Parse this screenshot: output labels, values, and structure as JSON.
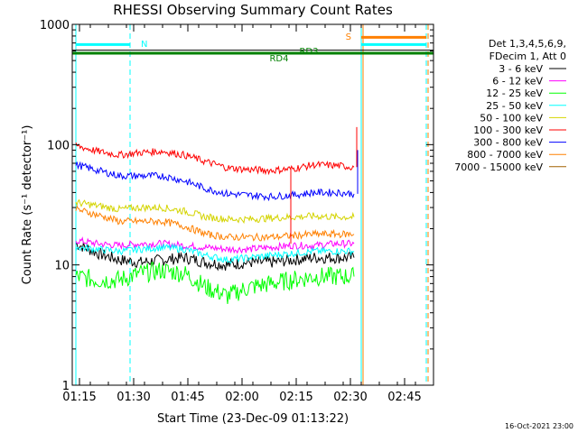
{
  "chart_data": {
    "type": "line",
    "title": "RHESSI Observing Summary Count Rates",
    "xlabel": "Start Time (23-Dec-09 01:13:22)",
    "ylabel": "Count Rate (s⁻¹ detector⁻¹)",
    "y_scale": "log",
    "ylim": [
      1,
      1000
    ],
    "x_range": [
      "01:13",
      "02:53"
    ],
    "x_ticks": [
      "01:15",
      "01:30",
      "01:45",
      "02:00",
      "02:15",
      "02:30",
      "02:45"
    ],
    "y_ticks": [
      "1",
      "10",
      "100",
      "1000"
    ],
    "legend_header": [
      "Det 1,3,4,5,6,9,",
      "FDecim 1, Att 0"
    ],
    "legend_position": "right",
    "series": [
      {
        "name": "3 - 6 keV",
        "color": "#000000",
        "x": [
          "01:14",
          "01:20",
          "01:26",
          "01:32",
          "01:38",
          "01:44",
          "01:50",
          "01:56",
          "02:02",
          "02:08",
          "02:14",
          "02:20",
          "02:26",
          "02:31"
        ],
        "y": [
          15,
          12.5,
          11,
          10.5,
          11,
          11.5,
          10.5,
          10,
          10.5,
          10.5,
          11,
          11.5,
          11.5,
          11.5
        ]
      },
      {
        "name": "6 - 12 keV",
        "color": "#ff00ff",
        "x": [
          "01:14",
          "01:20",
          "01:26",
          "01:32",
          "01:38",
          "01:44",
          "01:50",
          "01:56",
          "02:02",
          "02:08",
          "02:14",
          "02:20",
          "02:26",
          "02:31"
        ],
        "y": [
          16,
          15,
          14.5,
          15,
          15,
          14.5,
          14,
          13.5,
          13.5,
          14,
          14.5,
          14.5,
          15,
          15
        ]
      },
      {
        "name": "12 - 25 keV",
        "color": "#00ff00",
        "x": [
          "01:14",
          "01:20",
          "01:26",
          "01:32",
          "01:38",
          "01:44",
          "01:50",
          "01:56",
          "02:02",
          "02:08",
          "02:14",
          "02:20",
          "02:26",
          "02:31"
        ],
        "y": [
          8,
          7.5,
          7.5,
          8.5,
          9,
          8.5,
          6.5,
          5.5,
          6.5,
          7,
          7.5,
          8,
          8,
          8
        ]
      },
      {
        "name": "25 - 50 keV",
        "color": "#00ffff",
        "x": [
          "01:14",
          "01:20",
          "01:26",
          "01:32",
          "01:38",
          "01:44",
          "01:50",
          "01:56",
          "02:02",
          "02:08",
          "02:14",
          "02:20",
          "02:26",
          "02:31"
        ],
        "y": [
          14,
          13.5,
          13,
          13.5,
          14,
          13.5,
          12,
          11,
          11.5,
          12,
          12.5,
          13,
          13,
          13
        ]
      },
      {
        "name": "50 - 100 keV",
        "color": "#d4d400",
        "x": [
          "01:14",
          "01:20",
          "01:26",
          "01:32",
          "01:38",
          "01:44",
          "01:50",
          "01:56",
          "02:02",
          "02:08",
          "02:14",
          "02:20",
          "02:26",
          "02:31"
        ],
        "y": [
          33,
          31,
          29,
          30,
          30,
          28,
          25,
          24,
          24,
          24.5,
          25,
          25.5,
          25,
          25
        ]
      },
      {
        "name": "100 - 300 keV",
        "color": "#ff0000",
        "x": [
          "01:14",
          "01:20",
          "01:26",
          "01:32",
          "01:38",
          "01:44",
          "01:50",
          "01:56",
          "02:02",
          "02:08",
          "02:14",
          "02:20",
          "02:26",
          "02:31"
        ],
        "y": [
          98,
          88,
          82,
          86,
          88,
          82,
          72,
          64,
          62,
          61,
          63,
          68,
          67,
          65
        ]
      },
      {
        "name": "300 - 800 keV",
        "color": "#0000ff",
        "x": [
          "01:14",
          "01:20",
          "01:26",
          "01:32",
          "01:38",
          "01:44",
          "01:50",
          "01:56",
          "02:02",
          "02:08",
          "02:14",
          "02:20",
          "02:26",
          "02:31"
        ],
        "y": [
          68,
          61,
          55,
          55,
          55,
          50,
          43,
          39,
          38,
          37,
          38,
          40,
          40,
          39
        ]
      },
      {
        "name": "800 - 7000 keV",
        "color": "#ff8000",
        "x": [
          "01:14",
          "01:20",
          "01:26",
          "01:32",
          "01:38",
          "01:44",
          "01:50",
          "01:56",
          "02:02",
          "02:08",
          "02:14",
          "02:20",
          "02:26",
          "02:31"
        ],
        "y": [
          29,
          26,
          23,
          23,
          23,
          21,
          18,
          17,
          17,
          17,
          17.5,
          18,
          18,
          18
        ]
      },
      {
        "name": "7000 - 15000 keV",
        "color": "#a06000",
        "x": [],
        "y": []
      }
    ],
    "state_bars": [
      {
        "label": "N",
        "color": "#00ffff",
        "y": 680,
        "segments": [
          [
            "01:14",
            "01:29"
          ],
          [
            "02:33",
            "02:51"
          ]
        ]
      },
      {
        "label": "S",
        "color": "#ff8000",
        "y": 780,
        "segments": [
          [
            "02:33",
            "02:51"
          ]
        ]
      },
      {
        "label": "RD3",
        "color": "#000000",
        "y": 610,
        "segments": [
          [
            "01:13",
            "02:53"
          ]
        ]
      },
      {
        "label": "RD4",
        "color": "#008000",
        "y": 575,
        "segments": [
          [
            "01:13",
            "02:53"
          ]
        ]
      }
    ],
    "vertical_markers": [
      {
        "time": "01:14",
        "color": "#00ffff",
        "style": "solid"
      },
      {
        "time": "01:29",
        "color": "#00ffff",
        "style": "dashed"
      },
      {
        "time": "02:33",
        "color": "#00ffff",
        "style": "solid"
      },
      {
        "time": "02:51",
        "color": "#00ffff",
        "style": "dashed"
      },
      {
        "time": "02:33",
        "color": "#ff8000",
        "style": "solid"
      },
      {
        "time": "02:51",
        "color": "#ff8000",
        "style": "dashed"
      }
    ]
  },
  "footer": "16-Oct-2021 23:00"
}
